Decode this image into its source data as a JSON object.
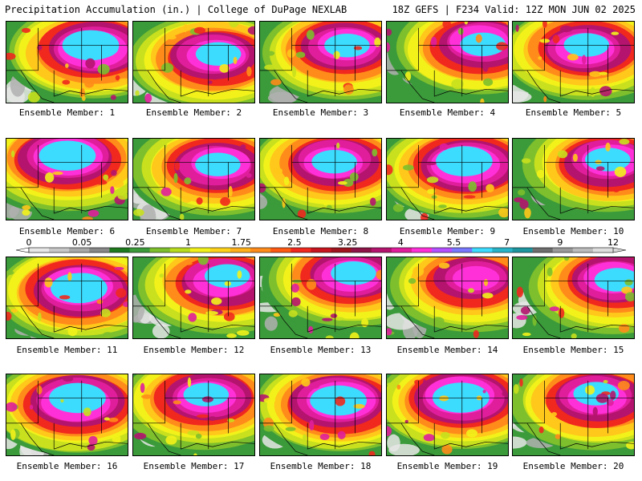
{
  "header": {
    "left": "Precipitation Accumulation (in.) | College of DuPage NEXLAB",
    "right": "18Z GEFS | F234 Valid: 12Z MON JUN 02 2025"
  },
  "colorbar": {
    "ticks": [
      "0",
      "0.05",
      "0.25",
      "1",
      "1.75",
      "2.5",
      "3.25",
      "4",
      "5.5",
      "7",
      "9",
      "12"
    ],
    "colors": [
      "#e8e8e8",
      "#c8c8c8",
      "#a8a8a8",
      "#888888",
      "#1f7a1f",
      "#3b9a3a",
      "#7dbf2c",
      "#b8dc1e",
      "#f2f21a",
      "#ffd21a",
      "#ffb01a",
      "#ff8c1a",
      "#ff5a14",
      "#f0281e",
      "#c8141e",
      "#a0141e",
      "#8c1446",
      "#b4146e",
      "#e01e9c",
      "#ff30d8",
      "#b450ff",
      "#7878ff",
      "#3cdcff",
      "#28b4c8",
      "#1e96a0",
      "#6e6e6e",
      "#9a9a9a",
      "#bcbcbc",
      "#dedede"
    ]
  },
  "members": [
    {
      "label": "Ensemble Member: 1",
      "core": [
        0.72,
        0.3
      ],
      "intensity": 0.95
    },
    {
      "label": "Ensemble Member: 2",
      "core": [
        0.68,
        0.4
      ],
      "intensity": 0.9
    },
    {
      "label": "Ensemble Member: 3",
      "core": [
        0.7,
        0.28
      ],
      "intensity": 0.85
    },
    {
      "label": "Ensemble Member: 4",
      "core": [
        0.78,
        0.25
      ],
      "intensity": 0.8
    },
    {
      "label": "Ensemble Member: 5",
      "core": [
        0.6,
        0.3
      ],
      "intensity": 0.9
    },
    {
      "label": "Ensemble Member: 6",
      "core": [
        0.5,
        0.2
      ],
      "intensity": 0.95
    },
    {
      "label": "Ensemble Member: 7",
      "core": [
        0.7,
        0.3
      ],
      "intensity": 0.85
    },
    {
      "label": "Ensemble Member: 8",
      "core": [
        0.62,
        0.25
      ],
      "intensity": 0.85
    },
    {
      "label": "Ensemble Member: 9",
      "core": [
        0.65,
        0.28
      ],
      "intensity": 0.95
    },
    {
      "label": "Ensemble Member: 10",
      "core": [
        0.8,
        0.25
      ],
      "intensity": 0.8
    },
    {
      "label": "Ensemble Member: 11",
      "core": [
        0.62,
        0.35
      ],
      "intensity": 0.95
    },
    {
      "label": "Ensemble Member: 12",
      "core": [
        0.75,
        0.25
      ],
      "intensity": 0.75
    },
    {
      "label": "Ensemble Member: 13",
      "core": [
        0.75,
        0.2
      ],
      "intensity": 0.85
    },
    {
      "label": "Ensemble Member: 14",
      "core": [
        0.72,
        0.25
      ],
      "intensity": 0.65
    },
    {
      "label": "Ensemble Member: 15",
      "core": [
        0.85,
        0.25
      ],
      "intensity": 0.8
    },
    {
      "label": "Ensemble Member: 16",
      "core": [
        0.58,
        0.3
      ],
      "intensity": 0.95
    },
    {
      "label": "Ensemble Member: 17",
      "core": [
        0.6,
        0.25
      ],
      "intensity": 0.9
    },
    {
      "label": "Ensemble Member: 18",
      "core": [
        0.65,
        0.3
      ],
      "intensity": 0.95
    },
    {
      "label": "Ensemble Member: 19",
      "core": [
        0.62,
        0.25
      ],
      "intensity": 0.95
    },
    {
      "label": "Ensemble Member: 20",
      "core": [
        0.7,
        0.25
      ],
      "intensity": 0.75
    }
  ]
}
